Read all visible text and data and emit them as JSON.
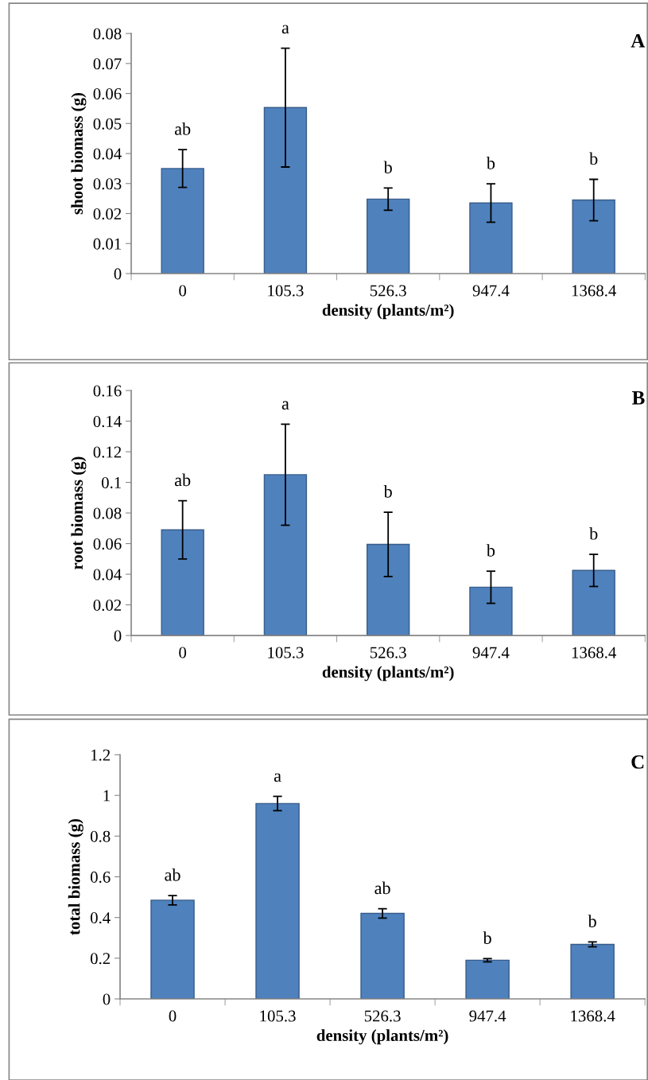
{
  "chart_data": [
    {
      "type": "bar",
      "title": "A",
      "xlabel": "density (plants/m²)",
      "ylabel": "shoot biomass (g)",
      "categories": [
        "0",
        "105.3",
        "526.3",
        "947.4",
        "1368.4"
      ],
      "color": "#4f81bd",
      "values": [
        0.035,
        0.0553,
        0.0248,
        0.0235,
        0.0245
      ],
      "errors": [
        0.0063,
        0.0198,
        0.0037,
        0.0064,
        0.0069
      ],
      "ylim": [
        0,
        0.08
      ],
      "yticks": [
        0,
        0.01,
        0.02,
        0.03,
        0.04,
        0.05,
        0.06,
        0.07,
        0.08
      ],
      "grid": false,
      "annotations": [
        "ab",
        "a",
        "b",
        "b",
        "b"
      ]
    },
    {
      "type": "bar",
      "title": "B",
      "xlabel": "density (plants/m²)",
      "ylabel": "root biomass (g)",
      "categories": [
        "0",
        "105.3",
        "526.3",
        "947.4",
        "1368.4"
      ],
      "color": "#4f81bd",
      "values": [
        0.069,
        0.105,
        0.0595,
        0.0315,
        0.0425
      ],
      "errors": [
        0.019,
        0.033,
        0.021,
        0.0105,
        0.0105
      ],
      "ylim": [
        0,
        0.16
      ],
      "yticks": [
        0,
        0.02,
        0.04,
        0.06,
        0.08,
        0.1,
        0.12,
        0.14,
        0.16
      ],
      "grid": false,
      "annotations": [
        "ab",
        "a",
        "b",
        "b",
        "b"
      ]
    },
    {
      "type": "bar",
      "title": "C",
      "xlabel": "density (plants/m²)",
      "ylabel": "total biomass (g)",
      "categories": [
        "0",
        "105.3",
        "526.3",
        "947.4",
        "1368.4"
      ],
      "color": "#4f81bd",
      "values": [
        0.485,
        0.96,
        0.42,
        0.19,
        0.268
      ],
      "errors": [
        0.023,
        0.035,
        0.023,
        0.008,
        0.012
      ],
      "ylim": [
        0,
        1.2
      ],
      "yticks": [
        0,
        0.2,
        0.4,
        0.6,
        0.8,
        1,
        1.2
      ],
      "grid": false,
      "annotations": [
        "ab",
        "a",
        "ab",
        "b",
        "b"
      ]
    }
  ]
}
